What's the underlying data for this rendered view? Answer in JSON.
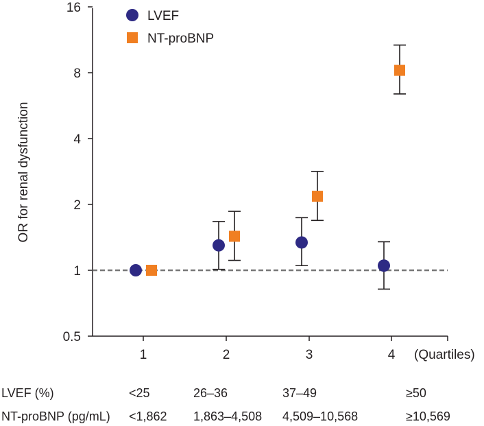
{
  "chart_data": {
    "type": "scatter",
    "title": "",
    "ylabel": "OR for renal dysfunction",
    "xlabel": "(Quartiles)",
    "yscale": "log2",
    "ylim": [
      0.5,
      16
    ],
    "yticks": [
      0.5,
      1,
      2,
      4,
      8,
      16
    ],
    "yticklabels": [
      "0.5",
      "1",
      "2",
      "4",
      "8",
      "16"
    ],
    "categories": [
      "1",
      "2",
      "3",
      "4"
    ],
    "reference_line": 1,
    "legend_position": "top-left",
    "series": [
      {
        "name": "LVEF",
        "marker": "circle",
        "color": "#2e2a84",
        "values": [
          1.0,
          1.3,
          1.34,
          1.05
        ],
        "ci_lower": [
          null,
          1.01,
          1.05,
          0.82
        ],
        "ci_upper": [
          null,
          1.67,
          1.74,
          1.35
        ]
      },
      {
        "name": "NT-proBNP",
        "marker": "square",
        "color": "#f07f22",
        "values": [
          1.0,
          1.43,
          2.18,
          8.2
        ],
        "ci_lower": [
          null,
          1.11,
          1.69,
          6.4
        ],
        "ci_upper": [
          null,
          1.86,
          2.83,
          10.7
        ]
      }
    ]
  },
  "table": {
    "rows": [
      {
        "label": "LVEF (%)",
        "cells": [
          "<25",
          "26–36",
          "37–49",
          "≥50"
        ]
      },
      {
        "label": "NT-proBNP (pg/mL)",
        "cells": [
          "<1,862",
          "1,863–4,508",
          "4,509–10,568",
          "≥10,569"
        ]
      }
    ]
  }
}
